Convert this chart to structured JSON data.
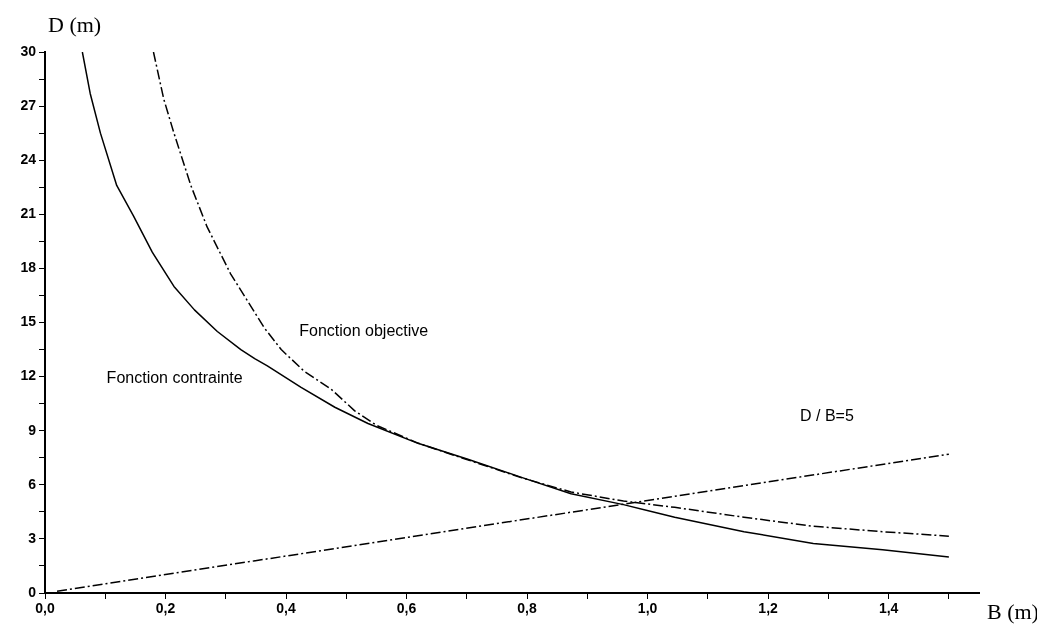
{
  "chart_data": {
    "type": "line",
    "xlabel": "B (m)",
    "ylabel": "D (m)",
    "xlim": [
      0,
      1.55
    ],
    "ylim": [
      0,
      30
    ],
    "xticks": [
      {
        "value": 0,
        "label": "0,0"
      },
      {
        "value": 0.1,
        "label": null
      },
      {
        "value": 0.2,
        "label": "0,2"
      },
      {
        "value": 0.3,
        "label": null
      },
      {
        "value": 0.4,
        "label": "0,4"
      },
      {
        "value": 0.5,
        "label": null
      },
      {
        "value": 0.6,
        "label": "0,6"
      },
      {
        "value": 0.7,
        "label": null
      },
      {
        "value": 0.8,
        "label": "0,8"
      },
      {
        "value": 0.9,
        "label": null
      },
      {
        "value": 1.0,
        "label": "1,0"
      },
      {
        "value": 1.1,
        "label": null
      },
      {
        "value": 1.2,
        "label": "1,2"
      },
      {
        "value": 1.3,
        "label": null
      },
      {
        "value": 1.4,
        "label": "1,4"
      },
      {
        "value": 1.5,
        "label": null
      }
    ],
    "yticks": [
      0,
      {
        "value": 1.5,
        "label": null
      },
      3,
      {
        "value": 4.5,
        "label": null
      },
      6,
      {
        "value": 7.5,
        "label": null
      },
      9,
      {
        "value": 10.5,
        "label": null
      },
      12,
      {
        "value": 13.5,
        "label": null
      },
      15,
      {
        "value": 16.5,
        "label": null
      },
      18,
      {
        "value": 19.5,
        "label": null
      },
      21,
      {
        "value": 22.5,
        "label": null
      },
      24,
      {
        "value": 25.5,
        "label": null
      },
      27,
      {
        "value": 28.5,
        "label": null
      },
      30
    ],
    "grid": false,
    "legend": false,
    "marker": "none",
    "series": [
      {
        "name": "Fonction objective",
        "color": "#000000",
        "line_style": "dashed",
        "x": [
          0.18,
          0.197,
          0.214,
          0.242,
          0.269,
          0.308,
          0.364,
          0.392,
          0.43,
          0.475,
          0.514,
          0.55,
          0.62,
          0.7,
          0.79,
          0.873,
          0.96,
          1.045,
          1.16,
          1.275,
          1.39,
          1.5
        ],
        "values": [
          30,
          27.4,
          25.5,
          22.6,
          20.3,
          17.7,
          14.7,
          13.5,
          12.3,
          11.3,
          10.1,
          9.3,
          8.3,
          7.4,
          6.4,
          5.6,
          5.1,
          4.75,
          4.2,
          3.7,
          3.4,
          3.15
        ]
      },
      {
        "name": "Fonction contrainte",
        "color": "#000000",
        "line_style": "solid",
        "x": [
          0.062,
          0.075,
          0.092,
          0.119,
          0.147,
          0.178,
          0.214,
          0.248,
          0.286,
          0.325,
          0.348,
          0.369,
          0.425,
          0.481,
          0.536,
          0.619,
          0.703,
          0.792,
          0.873,
          0.96,
          1.045,
          1.16,
          1.275,
          1.39,
          1.5
        ],
        "values": [
          30,
          27.7,
          25.5,
          22.6,
          20.9,
          18.9,
          17.0,
          15.7,
          14.5,
          13.5,
          13.0,
          12.6,
          11.4,
          10.3,
          9.4,
          8.3,
          7.4,
          6.4,
          5.5,
          4.9,
          4.2,
          3.4,
          2.75,
          2.4,
          2.0
        ]
      },
      {
        "name": "D / B=5",
        "color": "#000000",
        "line_style": "dashed",
        "x": [
          0.02,
          1.5
        ],
        "values": [
          0.1,
          7.7
        ]
      }
    ]
  }
}
